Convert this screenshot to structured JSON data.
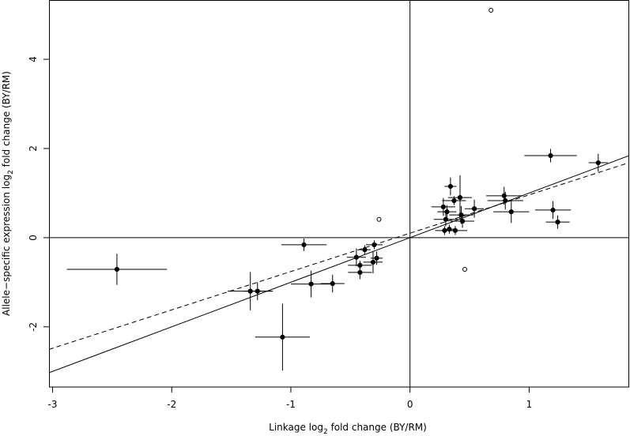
{
  "chart_data": {
    "type": "scatter",
    "xlabel": [
      "Linkage log",
      "2",
      " fold change (BY/RM)"
    ],
    "ylabel": [
      "Allele−specific expression log",
      "2",
      " fold change (BY/RM)"
    ],
    "xlim": [
      -3.03,
      1.84
    ],
    "ylim": [
      -3.35,
      5.33
    ],
    "xticks": [
      -3,
      -2,
      -1,
      0,
      1
    ],
    "yticks": [
      -2,
      0,
      2,
      4
    ],
    "vline": 0,
    "hline": 0,
    "series": [
      {
        "marker": "filled",
        "color": "#000000",
        "x": [
          -2.46,
          -0.89,
          -1.34,
          -1.28,
          -0.83,
          -0.65,
          -1.07,
          -0.45,
          -0.42,
          -0.42,
          -0.38,
          -0.3,
          -0.31,
          -0.28,
          0.34,
          0.28,
          0.31,
          0.3,
          0.37,
          0.42,
          0.43,
          0.38,
          0.29,
          0.33,
          0.44,
          0.54,
          0.79,
          0.8,
          0.85,
          1.18,
          1.2,
          1.24,
          1.58
        ],
        "y": [
          -0.71,
          -0.16,
          -1.2,
          -1.2,
          -1.04,
          -1.03,
          -2.23,
          -0.44,
          -0.78,
          -0.62,
          -0.27,
          -0.16,
          -0.55,
          -0.46,
          1.15,
          0.69,
          0.58,
          0.41,
          0.83,
          0.9,
          0.51,
          0.16,
          0.16,
          0.19,
          0.37,
          0.65,
          0.94,
          0.83,
          0.58,
          1.84,
          0.62,
          0.35,
          1.68
        ],
        "xerr": [
          0.42,
          0.19,
          0.19,
          0.12,
          0.17,
          0.1,
          0.23,
          0.08,
          0.1,
          0.1,
          0.05,
          0.07,
          0.08,
          0.05,
          0.05,
          0.1,
          0.08,
          0.1,
          0.1,
          0.1,
          0.1,
          0.1,
          0.08,
          0.05,
          0.1,
          0.08,
          0.15,
          0.15,
          0.15,
          0.22,
          0.15,
          0.1,
          0.08
        ],
        "yerr": [
          0.35,
          0.14,
          0.43,
          0.2,
          0.3,
          0.2,
          0.75,
          0.2,
          0.15,
          0.1,
          0.1,
          0.1,
          0.25,
          0.15,
          0.2,
          0.2,
          0.15,
          0.15,
          0.1,
          0.5,
          0.2,
          0.1,
          0.1,
          0.1,
          0.15,
          0.2,
          0.2,
          0.2,
          0.25,
          0.15,
          0.2,
          0.15,
          0.2
        ]
      },
      {
        "marker": "open",
        "color": "#000000",
        "x": [
          0.68,
          -0.26,
          0.46
        ],
        "y": [
          5.1,
          0.41,
          -0.71
        ]
      }
    ],
    "fit_lines": [
      {
        "slope": 1.0,
        "intercept": 0.0,
        "style": "solid",
        "color": "#000000"
      },
      {
        "slope": 0.86,
        "intercept": 0.1,
        "style": "dashed",
        "color": "#000000"
      }
    ]
  }
}
